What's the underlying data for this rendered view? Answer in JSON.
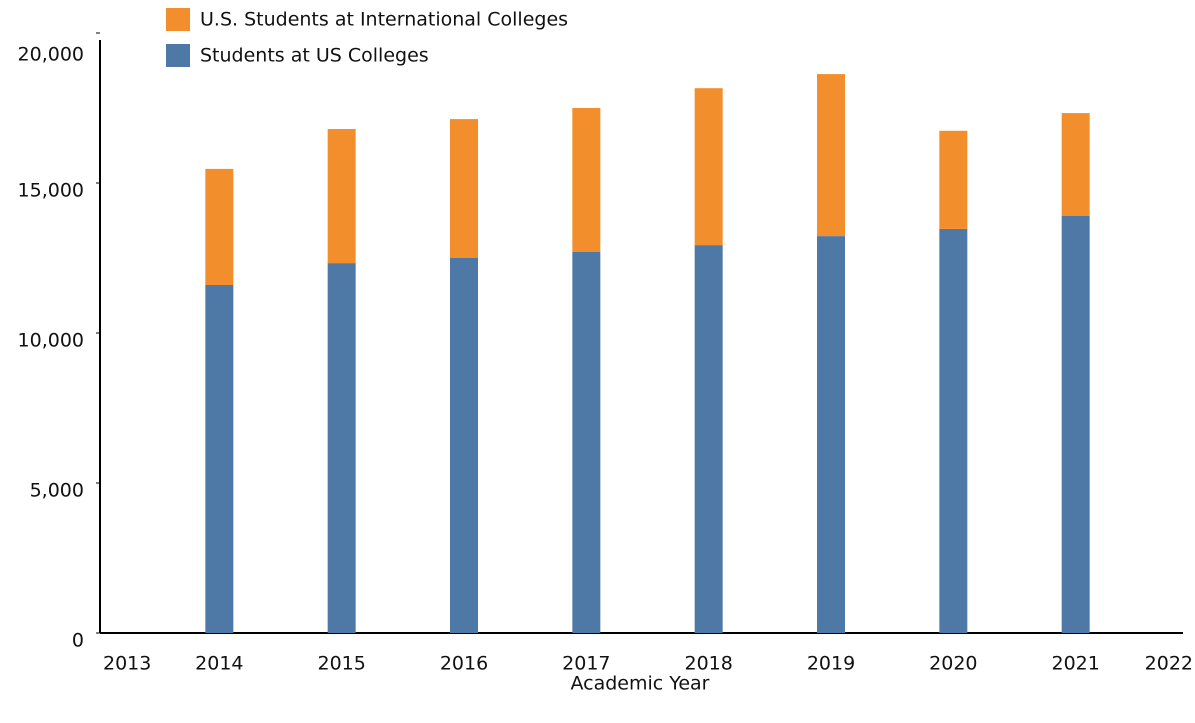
{
  "chart_data": {
    "type": "bar",
    "stacked": true,
    "x_label": "Academic Year",
    "x": [
      2014,
      2015,
      2016,
      2017,
      2018,
      2019,
      2020,
      2021
    ],
    "series": [
      {
        "name": "Students at US Colleges",
        "color": "#4e79a7",
        "values": [
          11600,
          12330,
          12500,
          12700,
          12930,
          13230,
          13470,
          13900
        ]
      },
      {
        "name": "U.S. Students at International Colleges",
        "color": "#f28e2b",
        "values": [
          3870,
          4470,
          4630,
          4800,
          5230,
          5400,
          3270,
          3430
        ]
      }
    ],
    "xlim": [
      2013,
      2022
    ],
    "xticks": [
      2013,
      2014,
      2015,
      2016,
      2017,
      2018,
      2019,
      2020,
      2021,
      2022
    ],
    "ylim": [
      0,
      20000
    ],
    "yticks": [
      0,
      {
        "value": 5000,
        "label": "5,000"
      },
      {
        "value": 10000,
        "label": "10,000"
      },
      {
        "value": 15000,
        "label": "15,000"
      },
      {
        "value": 20000,
        "label": "20,000"
      }
    ],
    "grid": false,
    "legend": "top-left"
  }
}
